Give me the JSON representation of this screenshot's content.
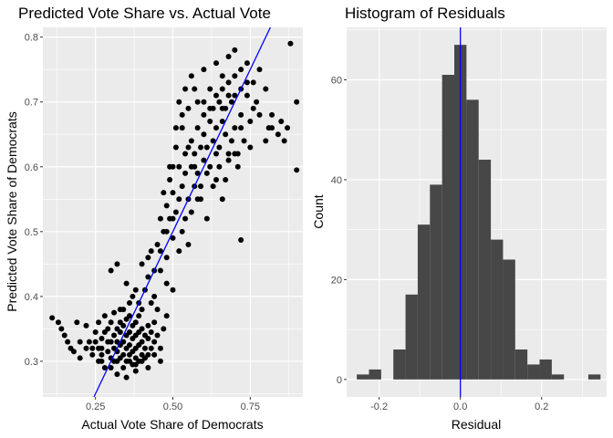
{
  "chart_data": [
    {
      "type": "scatter",
      "title": "Predicted Vote Share vs. Actual Vote",
      "xlabel": "Actual Vote Share of Democrats",
      "ylabel": "Predicted Vote Share of Democrats",
      "xlim": [
        0.08,
        0.92
      ],
      "ylim": [
        0.245,
        0.815
      ],
      "xticks": [
        0.25,
        0.5,
        0.75
      ],
      "xtick_labels": [
        "0.25",
        "0.50",
        "0.75"
      ],
      "yticks": [
        0.3,
        0.4,
        0.5,
        0.6,
        0.7,
        0.8
      ],
      "ytick_labels": [
        "0.3",
        "0.4",
        "0.5",
        "0.6",
        "0.7",
        "0.8"
      ],
      "grid": true,
      "point_color": "#000000",
      "reference_line": {
        "slope": 1,
        "intercept": 0,
        "color": "#0000ff"
      },
      "points": [
        [
          0.11,
          0.367
        ],
        [
          0.14,
          0.35
        ],
        [
          0.16,
          0.33
        ],
        [
          0.18,
          0.315
        ],
        [
          0.2,
          0.305
        ],
        [
          0.22,
          0.355
        ],
        [
          0.23,
          0.33
        ],
        [
          0.24,
          0.31
        ],
        [
          0.25,
          0.345
        ],
        [
          0.26,
          0.32
        ],
        [
          0.26,
          0.36
        ],
        [
          0.27,
          0.3
        ],
        [
          0.27,
          0.335
        ],
        [
          0.28,
          0.345
        ],
        [
          0.28,
          0.37
        ],
        [
          0.29,
          0.315
        ],
        [
          0.29,
          0.35
        ],
        [
          0.3,
          0.305
        ],
        [
          0.3,
          0.33
        ],
        [
          0.3,
          0.36
        ],
        [
          0.31,
          0.32
        ],
        [
          0.31,
          0.34
        ],
        [
          0.31,
          0.375
        ],
        [
          0.32,
          0.3
        ],
        [
          0.32,
          0.315
        ],
        [
          0.32,
          0.33
        ],
        [
          0.32,
          0.35
        ],
        [
          0.33,
          0.305
        ],
        [
          0.33,
          0.325
        ],
        [
          0.33,
          0.345
        ],
        [
          0.33,
          0.36
        ],
        [
          0.34,
          0.31
        ],
        [
          0.34,
          0.33
        ],
        [
          0.34,
          0.355
        ],
        [
          0.34,
          0.38
        ],
        [
          0.35,
          0.3
        ],
        [
          0.35,
          0.32
        ],
        [
          0.35,
          0.34
        ],
        [
          0.35,
          0.365
        ],
        [
          0.36,
          0.31
        ],
        [
          0.36,
          0.325
        ],
        [
          0.36,
          0.345
        ],
        [
          0.36,
          0.37
        ],
        [
          0.37,
          0.295
        ],
        [
          0.37,
          0.315
        ],
        [
          0.37,
          0.335
        ],
        [
          0.37,
          0.355
        ],
        [
          0.38,
          0.305
        ],
        [
          0.38,
          0.32
        ],
        [
          0.38,
          0.34
        ],
        [
          0.38,
          0.36
        ],
        [
          0.39,
          0.3
        ],
        [
          0.39,
          0.325
        ],
        [
          0.39,
          0.345
        ],
        [
          0.39,
          0.37
        ],
        [
          0.4,
          0.31
        ],
        [
          0.4,
          0.33
        ],
        [
          0.4,
          0.35
        ],
        [
          0.41,
          0.305
        ],
        [
          0.41,
          0.32
        ],
        [
          0.41,
          0.34
        ],
        [
          0.42,
          0.31
        ],
        [
          0.42,
          0.335
        ],
        [
          0.42,
          0.355
        ],
        [
          0.43,
          0.32
        ],
        [
          0.43,
          0.345
        ],
        [
          0.44,
          0.33
        ],
        [
          0.44,
          0.36
        ],
        [
          0.45,
          0.34
        ],
        [
          0.46,
          0.32
        ],
        [
          0.47,
          0.35
        ],
        [
          0.48,
          0.37
        ],
        [
          0.35,
          0.275
        ],
        [
          0.38,
          0.295
        ],
        [
          0.3,
          0.29
        ],
        [
          0.27,
          0.32
        ],
        [
          0.25,
          0.33
        ],
        [
          0.33,
          0.38
        ],
        [
          0.36,
          0.39
        ],
        [
          0.4,
          0.38
        ],
        [
          0.3,
          0.44
        ],
        [
          0.32,
          0.45
        ],
        [
          0.35,
          0.42
        ],
        [
          0.38,
          0.41
        ],
        [
          0.4,
          0.45
        ],
        [
          0.42,
          0.43
        ],
        [
          0.43,
          0.47
        ],
        [
          0.44,
          0.4
        ],
        [
          0.45,
          0.48
        ],
        [
          0.46,
          0.44
        ],
        [
          0.47,
          0.5
        ],
        [
          0.48,
          0.42
        ],
        [
          0.48,
          0.46
        ],
        [
          0.49,
          0.52
        ],
        [
          0.5,
          0.41
        ],
        [
          0.5,
          0.49
        ],
        [
          0.51,
          0.53
        ],
        [
          0.52,
          0.47
        ],
        [
          0.52,
          0.55
        ],
        [
          0.53,
          0.5
        ],
        [
          0.53,
          0.57
        ],
        [
          0.54,
          0.52
        ],
        [
          0.54,
          0.59
        ],
        [
          0.55,
          0.48
        ],
        [
          0.55,
          0.55
        ],
        [
          0.56,
          0.6
        ],
        [
          0.56,
          0.53
        ],
        [
          0.57,
          0.57
        ],
        [
          0.57,
          0.62
        ],
        [
          0.58,
          0.55
        ],
        [
          0.58,
          0.59
        ],
        [
          0.59,
          0.63
        ],
        [
          0.59,
          0.57
        ],
        [
          0.6,
          0.61
        ],
        [
          0.6,
          0.65
        ],
        [
          0.61,
          0.59
        ],
        [
          0.61,
          0.63
        ],
        [
          0.62,
          0.67
        ],
        [
          0.62,
          0.6
        ],
        [
          0.63,
          0.64
        ],
        [
          0.63,
          0.69
        ],
        [
          0.64,
          0.62
        ],
        [
          0.64,
          0.66
        ],
        [
          0.65,
          0.7
        ],
        [
          0.65,
          0.63
        ],
        [
          0.66,
          0.67
        ],
        [
          0.66,
          0.72
        ],
        [
          0.67,
          0.65
        ],
        [
          0.67,
          0.69
        ],
        [
          0.68,
          0.73
        ],
        [
          0.68,
          0.61
        ],
        [
          0.69,
          0.7
        ],
        [
          0.7,
          0.66
        ],
        [
          0.7,
          0.74
        ],
        [
          0.71,
          0.62
        ],
        [
          0.72,
          0.68
        ],
        [
          0.72,
          0.75
        ],
        [
          0.73,
          0.64
        ],
        [
          0.74,
          0.71
        ],
        [
          0.74,
          0.76
        ],
        [
          0.75,
          0.67
        ],
        [
          0.76,
          0.73
        ],
        [
          0.77,
          0.7
        ],
        [
          0.78,
          0.75
        ],
        [
          0.8,
          0.72
        ],
        [
          0.81,
          0.66
        ],
        [
          0.82,
          0.68
        ],
        [
          0.84,
          0.65
        ],
        [
          0.86,
          0.64
        ],
        [
          0.9,
          0.7
        ],
        [
          0.9,
          0.595
        ],
        [
          0.88,
          0.79
        ],
        [
          0.72,
          0.487
        ],
        [
          0.57,
          0.72
        ],
        [
          0.55,
          0.69
        ],
        [
          0.53,
          0.66
        ],
        [
          0.51,
          0.63
        ],
        [
          0.5,
          0.6
        ],
        [
          0.49,
          0.58
        ],
        [
          0.52,
          0.7
        ],
        [
          0.54,
          0.72
        ],
        [
          0.56,
          0.74
        ],
        [
          0.58,
          0.7
        ],
        [
          0.6,
          0.75
        ],
        [
          0.62,
          0.72
        ],
        [
          0.64,
          0.76
        ],
        [
          0.66,
          0.74
        ],
        [
          0.68,
          0.77
        ],
        [
          0.7,
          0.78
        ],
        [
          0.58,
          0.66
        ],
        [
          0.56,
          0.64
        ],
        [
          0.6,
          0.68
        ],
        [
          0.54,
          0.62
        ],
        [
          0.52,
          0.6
        ],
        [
          0.5,
          0.56
        ],
        [
          0.48,
          0.54
        ],
        [
          0.46,
          0.52
        ],
        [
          0.47,
          0.56
        ],
        [
          0.49,
          0.6
        ],
        [
          0.51,
          0.66
        ],
        [
          0.53,
          0.68
        ],
        [
          0.55,
          0.63
        ],
        [
          0.57,
          0.6
        ],
        [
          0.59,
          0.55
        ],
        [
          0.61,
          0.52
        ],
        [
          0.63,
          0.57
        ],
        [
          0.65,
          0.6
        ],
        [
          0.67,
          0.58
        ],
        [
          0.69,
          0.64
        ],
        [
          0.71,
          0.6
        ],
        [
          0.41,
          0.41
        ],
        [
          0.39,
          0.39
        ],
        [
          0.37,
          0.4
        ],
        [
          0.44,
          0.44
        ],
        [
          0.42,
          0.46
        ],
        [
          0.45,
          0.38
        ],
        [
          0.43,
          0.39
        ],
        [
          0.46,
          0.47
        ],
        [
          0.48,
          0.5
        ],
        [
          0.5,
          0.52
        ],
        [
          0.46,
          0.3
        ],
        [
          0.44,
          0.31
        ],
        [
          0.42,
          0.29
        ],
        [
          0.4,
          0.3
        ],
        [
          0.38,
          0.285
        ],
        [
          0.36,
          0.3
        ],
        [
          0.34,
          0.29
        ],
        [
          0.32,
          0.28
        ],
        [
          0.31,
          0.3
        ],
        [
          0.29,
          0.33
        ],
        [
          0.28,
          0.29
        ],
        [
          0.27,
          0.31
        ],
        [
          0.26,
          0.3
        ],
        [
          0.24,
          0.32
        ],
        [
          0.22,
          0.32
        ],
        [
          0.2,
          0.33
        ],
        [
          0.17,
          0.32
        ],
        [
          0.15,
          0.34
        ],
        [
          0.13,
          0.36
        ],
        [
          0.19,
          0.36
        ],
        [
          0.6,
          0.7
        ],
        [
          0.62,
          0.69
        ],
        [
          0.64,
          0.71
        ],
        [
          0.66,
          0.69
        ],
        [
          0.68,
          0.71
        ],
        [
          0.7,
          0.71
        ],
        [
          0.72,
          0.72
        ],
        [
          0.74,
          0.73
        ],
        [
          0.76,
          0.69
        ],
        [
          0.78,
          0.68
        ],
        [
          0.8,
          0.64
        ],
        [
          0.82,
          0.66
        ],
        [
          0.85,
          0.67
        ],
        [
          0.87,
          0.66
        ],
        [
          0.66,
          0.55
        ],
        [
          0.64,
          0.58
        ],
        [
          0.68,
          0.62
        ],
        [
          0.72,
          0.66
        ],
        [
          0.7,
          0.62
        ],
        [
          0.75,
          0.63
        ]
      ]
    },
    {
      "type": "bar",
      "title": "Histogram of Residuals",
      "xlabel": "Residual",
      "ylabel": "Count",
      "xlim": [
        -0.28,
        0.36
      ],
      "ylim": [
        -3.5,
        70.5
      ],
      "xticks": [
        -0.2,
        0.0,
        0.2
      ],
      "xtick_labels": [
        "-0.2",
        "0.0",
        "0.2"
      ],
      "yticks": [
        0,
        20,
        40,
        60
      ],
      "ytick_labels": [
        "0",
        "20",
        "40",
        "60"
      ],
      "grid": true,
      "bar_color": "#474747",
      "reference_line": {
        "x": 0.0,
        "color": "#0000ff"
      },
      "bin_width": 0.03,
      "bins": [
        {
          "center": -0.24,
          "count": 1
        },
        {
          "center": -0.21,
          "count": 2
        },
        {
          "center": -0.18,
          "count": 0
        },
        {
          "center": -0.15,
          "count": 6
        },
        {
          "center": -0.12,
          "count": 17
        },
        {
          "center": -0.09,
          "count": 31
        },
        {
          "center": -0.06,
          "count": 39
        },
        {
          "center": -0.03,
          "count": 61
        },
        {
          "center": 0.0,
          "count": 67
        },
        {
          "center": 0.03,
          "count": 56
        },
        {
          "center": 0.06,
          "count": 44
        },
        {
          "center": 0.09,
          "count": 28
        },
        {
          "center": 0.12,
          "count": 24
        },
        {
          "center": 0.15,
          "count": 6
        },
        {
          "center": 0.18,
          "count": 3
        },
        {
          "center": 0.21,
          "count": 4
        },
        {
          "center": 0.24,
          "count": 1
        },
        {
          "center": 0.27,
          "count": 0
        },
        {
          "center": 0.3,
          "count": 0
        },
        {
          "center": 0.33,
          "count": 1
        }
      ]
    }
  ]
}
